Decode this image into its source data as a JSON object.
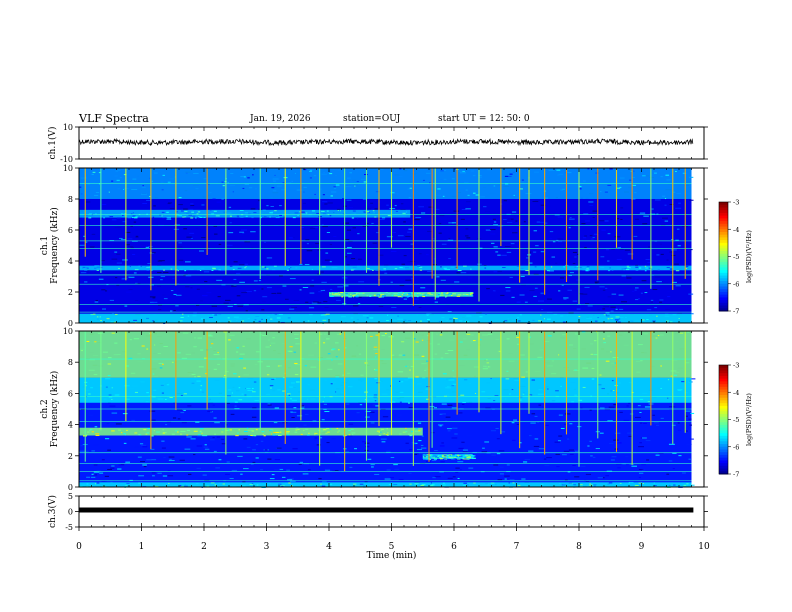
{
  "header": {
    "title": "VLF Spectra",
    "date": "Jan. 19, 2026",
    "station": "station=OUJ",
    "start_ut": "start  UT =  12: 50: 0"
  },
  "chart_data": [
    {
      "type": "line",
      "name": "ch1-waveform",
      "ylabel": "ch.1(V)",
      "ylim": [
        -10,
        10
      ],
      "yticks": [
        "10",
        "-10"
      ],
      "xlim": [
        0,
        10
      ],
      "baseline_value": 0.6,
      "amplitude_range": [
        -0.8,
        1.6
      ]
    },
    {
      "type": "heatmap",
      "name": "ch1-spectrogram",
      "ylabel_lines": [
        "ch.1",
        "Frequency  (kHz)"
      ],
      "ylim": [
        0,
        10
      ],
      "yticks": [
        "0",
        "2",
        "4",
        "6",
        "8",
        "10"
      ],
      "xlim": [
        0,
        10
      ],
      "data_end_min": 9.8,
      "colorbar": {
        "label": "log(PSD)(V²/Hz)",
        "min": -7,
        "max": -3,
        "ticks": [
          "-3",
          "-4",
          "-5",
          "-6",
          "-7"
        ]
      },
      "background_level": -6.6,
      "features": [
        {
          "kind": "band",
          "f_low": 0.0,
          "f_high": 0.6,
          "t_start": 0,
          "t_end": 9.8,
          "level": -5.6
        },
        {
          "kind": "band",
          "f_low": 1.7,
          "f_high": 2.0,
          "t_start": 4.0,
          "t_end": 6.3,
          "level": -5.2
        },
        {
          "kind": "band",
          "f_low": 3.4,
          "f_high": 3.7,
          "t_start": 0,
          "t_end": 9.8,
          "level": -5.7
        },
        {
          "kind": "band",
          "f_low": 6.8,
          "f_high": 7.3,
          "t_start": 0,
          "t_end": 5.3,
          "level": -5.8
        },
        {
          "kind": "band",
          "f_low": 8.0,
          "f_high": 10.0,
          "t_start": 0,
          "t_end": 9.8,
          "level": -5.9
        }
      ],
      "tones_khz": [
        0.7,
        1.2,
        2.5,
        3.1,
        4.8,
        5.3,
        6.3,
        7.0,
        9.0
      ],
      "sferics_min": [
        0.1,
        0.35,
        0.75,
        1.15,
        1.55,
        2.05,
        2.35,
        2.9,
        3.3,
        3.55,
        3.85,
        4.25,
        4.6,
        4.8,
        5.0,
        5.35,
        5.65,
        5.7,
        6.05,
        6.4,
        6.75,
        7.05,
        7.2,
        7.45,
        7.8,
        8.0,
        8.3,
        8.6,
        8.85,
        9.15,
        9.5,
        9.7
      ]
    },
    {
      "type": "heatmap",
      "name": "ch2-spectrogram",
      "ylabel_lines": [
        "ch.2",
        "Frequency  (kHz)"
      ],
      "ylim": [
        0,
        10
      ],
      "yticks": [
        "0",
        "2",
        "4",
        "6",
        "8",
        "10"
      ],
      "xlim": [
        0,
        10
      ],
      "data_end_min": 9.8,
      "colorbar": {
        "label": "log(PSD)(V²/Hz)",
        "min": -7,
        "max": -3,
        "ticks": [
          "-3",
          "-4",
          "-5",
          "-6",
          "-7"
        ]
      },
      "background_level": -6.4,
      "features": [
        {
          "kind": "band",
          "f_low": 7.0,
          "f_high": 10.0,
          "t_start": 0,
          "t_end": 9.8,
          "level": -5.0
        },
        {
          "kind": "band",
          "f_low": 5.4,
          "f_high": 7.0,
          "t_start": 0,
          "t_end": 9.8,
          "level": -5.6
        },
        {
          "kind": "band",
          "f_low": 3.3,
          "f_high": 3.8,
          "t_start": 0,
          "t_end": 5.5,
          "level": -5.0
        },
        {
          "kind": "band",
          "f_low": 1.8,
          "f_high": 2.1,
          "t_start": 5.5,
          "t_end": 6.3,
          "level": -5.5
        },
        {
          "kind": "band",
          "f_low": 0.0,
          "f_high": 0.3,
          "t_start": 0,
          "t_end": 9.8,
          "level": -5.6
        }
      ],
      "tones_khz": [
        0.4,
        1.0,
        1.5,
        2.2,
        4.2,
        5.0,
        5.8,
        8.2
      ],
      "sferics_min": [
        0.1,
        0.35,
        0.75,
        1.15,
        1.55,
        2.05,
        2.35,
        2.9,
        3.3,
        3.55,
        3.85,
        4.25,
        4.6,
        4.8,
        5.0,
        5.35,
        5.6,
        5.65,
        6.05,
        6.4,
        6.75,
        7.05,
        7.2,
        7.45,
        7.8,
        8.0,
        8.3,
        8.6,
        8.85,
        9.15,
        9.5,
        9.7
      ]
    },
    {
      "type": "line",
      "name": "ch3-waveform",
      "ylabel": "ch.3(V)",
      "ylim": [
        -5,
        5
      ],
      "yticks": [
        "5",
        "0",
        "-5"
      ],
      "xlim": [
        0,
        10
      ],
      "baseline_value": 0.0,
      "xlabel": "Time  (min)",
      "xticks": [
        "0",
        "1",
        "2",
        "3",
        "4",
        "5",
        "6",
        "7",
        "8",
        "9",
        "10"
      ]
    }
  ]
}
